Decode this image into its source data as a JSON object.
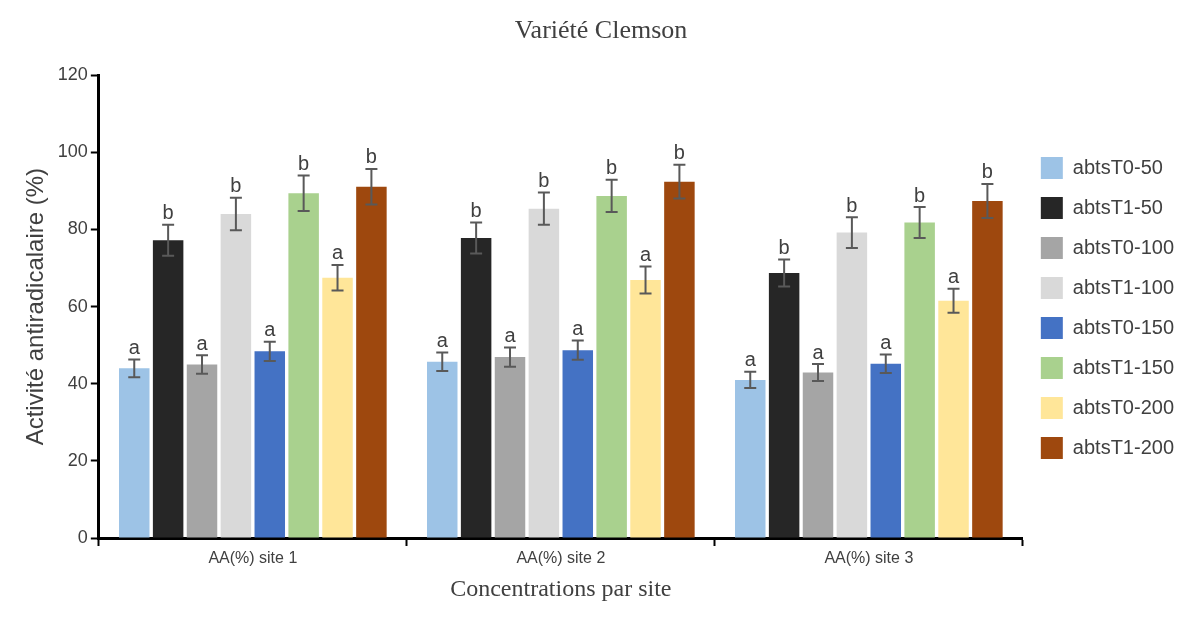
{
  "chart_data": {
    "type": "bar",
    "title": "Variété Clemson",
    "xlabel": "Concentrations par site",
    "ylabel": "Activité antiradicalaire (%)",
    "categories": [
      "AA(%) site 1",
      "AA(%) site 2",
      "AA(%) site 3"
    ],
    "series": [
      {
        "name": "abtsT0-50",
        "color": "#9dc3e6",
        "values": [
          44.0,
          45.7,
          41.0
        ],
        "errors": [
          2.3,
          2.4,
          2.1
        ],
        "value_labels": [
          "a",
          "a",
          "a"
        ]
      },
      {
        "name": "abtsT1-50",
        "color": "#262626",
        "values": [
          77.2,
          77.8,
          68.7
        ],
        "errors": [
          4,
          4,
          3.5
        ],
        "value_labels": [
          "b",
          "b",
          "b"
        ]
      },
      {
        "name": "abtsT0-100",
        "color": "#a5a5a5",
        "values": [
          45.0,
          46.9,
          42.9
        ],
        "errors": [
          2.4,
          2.5,
          2.2
        ],
        "value_labels": [
          "a",
          "a",
          "a"
        ]
      },
      {
        "name": "abtsT1-100",
        "color": "#d9d9d9",
        "values": [
          84.0,
          85.4,
          79.2
        ],
        "errors": [
          4.2,
          4.2,
          4
        ],
        "value_labels": [
          "b",
          "b",
          "b"
        ]
      },
      {
        "name": "abtsT0-150",
        "color": "#4472c4",
        "values": [
          48.4,
          48.7,
          45.2
        ],
        "errors": [
          2.5,
          2.5,
          2.4
        ],
        "value_labels": [
          "a",
          "a",
          "a"
        ]
      },
      {
        "name": "abtsT1-150",
        "color": "#a9d18e",
        "values": [
          89.4,
          88.7,
          81.8
        ],
        "errors": [
          4.6,
          4.2,
          4
        ],
        "value_labels": [
          "b",
          "b",
          "b"
        ]
      },
      {
        "name": "abtsT0-200",
        "color": "#ffe699",
        "values": [
          67.5,
          66.9,
          61.5
        ],
        "errors": [
          3.3,
          3.5,
          3.1
        ],
        "value_labels": [
          "a",
          "a",
          "a"
        ]
      },
      {
        "name": "abtsT1-200",
        "color": "#9e480e",
        "values": [
          91.1,
          92.4,
          87.4
        ],
        "errors": [
          4.6,
          4.4,
          4.4
        ],
        "value_labels": [
          "b",
          "b",
          "b"
        ]
      }
    ],
    "ylim": [
      0,
      120
    ],
    "yticks": [
      0,
      20,
      40,
      60,
      80,
      100,
      120
    ],
    "grid": false,
    "legend": "right"
  }
}
